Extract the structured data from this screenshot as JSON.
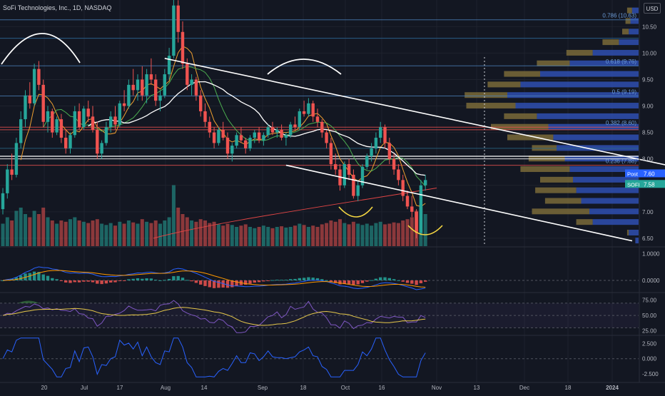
{
  "header": {
    "symbol_title": "SoFi Technologies, Inc., 1D, NASDAQ",
    "currency": "USD"
  },
  "colors": {
    "background": "#131722",
    "up": "#26a69a",
    "down": "#ef5350",
    "trendline": "#ffffff",
    "fib": "#6b9bd6",
    "ma_fast": "#f0a030",
    "ma_mid": "#4caf50",
    "ma_slow": "#ffffff",
    "ma_200": "#e04545",
    "vp_up": "#2f4fb0",
    "vp_down": "#7a6a38",
    "rsi": "#7e57c2",
    "rsi_ma": "#e6c84a",
    "macd": "#2962ff",
    "signal": "#ff9800",
    "osc": "#2962ff",
    "post_badge": "#2962ff",
    "price_badge": "#26a69a"
  },
  "chart_data": {
    "type": "candlestick",
    "x_axis": {
      "ticks": [
        "20",
        "Jul",
        "17",
        "Aug",
        "14",
        "Sep",
        "18",
        "Oct",
        "16",
        "Nov",
        "13",
        "Dec",
        "18",
        "2024"
      ]
    },
    "price_axis": {
      "range": [
        6.35,
        10.95
      ],
      "ticks": [
        "10.50",
        "10.00",
        "9.50",
        "9.00",
        "8.50",
        "8.00",
        "7.50",
        "7.00",
        "6.50"
      ]
    },
    "candles": [
      [
        7.05,
        7.45,
        6.95,
        7.35
      ],
      [
        7.35,
        7.9,
        7.25,
        7.8
      ],
      [
        7.8,
        8.1,
        7.6,
        7.7
      ],
      [
        7.7,
        8.4,
        7.65,
        8.3
      ],
      [
        8.3,
        8.9,
        8.2,
        8.75
      ],
      [
        8.75,
        9.3,
        8.6,
        9.2
      ],
      [
        9.2,
        9.45,
        8.95,
        9.05
      ],
      [
        9.05,
        9.8,
        9.0,
        9.7
      ],
      [
        9.7,
        9.85,
        9.3,
        9.4
      ],
      [
        9.4,
        9.5,
        8.6,
        8.7
      ],
      [
        8.7,
        9.0,
        8.5,
        8.9
      ],
      [
        8.9,
        8.95,
        8.4,
        8.5
      ],
      [
        8.5,
        8.8,
        8.45,
        8.75
      ],
      [
        8.75,
        8.85,
        8.3,
        8.4
      ],
      [
        8.4,
        8.55,
        8.1,
        8.2
      ],
      [
        8.2,
        8.5,
        8.1,
        8.45
      ],
      [
        8.45,
        9.0,
        8.4,
        8.9
      ],
      [
        8.9,
        9.05,
        8.55,
        8.6
      ],
      [
        8.6,
        9.0,
        8.55,
        8.95
      ],
      [
        8.95,
        9.1,
        8.7,
        8.8
      ],
      [
        8.8,
        9.0,
        8.5,
        8.55
      ],
      [
        8.55,
        8.7,
        8.0,
        8.1
      ],
      [
        8.1,
        8.35,
        8.0,
        8.3
      ],
      [
        8.3,
        8.7,
        8.25,
        8.6
      ],
      [
        8.6,
        8.9,
        8.5,
        8.8
      ],
      [
        8.8,
        9.0,
        8.55,
        8.65
      ],
      [
        8.65,
        9.1,
        8.6,
        9.05
      ],
      [
        9.05,
        9.3,
        8.9,
        9.0
      ],
      [
        9.0,
        9.5,
        8.95,
        9.4
      ],
      [
        9.4,
        9.7,
        9.2,
        9.3
      ],
      [
        9.3,
        9.6,
        9.1,
        9.5
      ],
      [
        9.5,
        9.75,
        9.1,
        9.2
      ],
      [
        9.2,
        9.7,
        9.05,
        9.6
      ],
      [
        9.6,
        9.9,
        9.4,
        9.5
      ],
      [
        9.5,
        9.6,
        9.0,
        9.1
      ],
      [
        9.1,
        9.3,
        8.9,
        9.2
      ],
      [
        9.2,
        9.7,
        9.15,
        9.6
      ],
      [
        9.6,
        10.1,
        9.5,
        9.95
      ],
      [
        9.95,
        11.1,
        9.9,
        10.9
      ],
      [
        10.9,
        11.0,
        10.2,
        10.4
      ],
      [
        10.4,
        10.6,
        9.7,
        9.8
      ],
      [
        9.8,
        9.9,
        9.3,
        9.4
      ],
      [
        9.4,
        9.6,
        9.2,
        9.5
      ],
      [
        9.5,
        9.55,
        9.1,
        9.2
      ],
      [
        9.2,
        9.3,
        8.8,
        8.9
      ],
      [
        8.9,
        9.05,
        8.6,
        8.7
      ],
      [
        8.7,
        8.8,
        8.4,
        8.5
      ],
      [
        8.5,
        8.6,
        8.2,
        8.3
      ],
      [
        8.3,
        8.6,
        8.25,
        8.55
      ],
      [
        8.55,
        8.7,
        8.35,
        8.4
      ],
      [
        8.4,
        8.5,
        8.0,
        8.1
      ],
      [
        8.1,
        8.3,
        7.95,
        8.25
      ],
      [
        8.25,
        8.5,
        8.2,
        8.45
      ],
      [
        8.45,
        8.6,
        8.3,
        8.35
      ],
      [
        8.35,
        8.4,
        8.1,
        8.2
      ],
      [
        8.2,
        8.45,
        8.15,
        8.4
      ],
      [
        8.4,
        8.55,
        8.3,
        8.5
      ],
      [
        8.5,
        8.6,
        8.3,
        8.35
      ],
      [
        8.35,
        8.5,
        8.25,
        8.45
      ],
      [
        8.45,
        8.65,
        8.4,
        8.6
      ],
      [
        8.6,
        8.7,
        8.45,
        8.5
      ],
      [
        8.5,
        8.6,
        8.4,
        8.55
      ],
      [
        8.55,
        8.65,
        8.35,
        8.4
      ],
      [
        8.4,
        8.5,
        8.25,
        8.45
      ],
      [
        8.45,
        8.7,
        8.4,
        8.65
      ],
      [
        8.65,
        8.8,
        8.55,
        8.6
      ],
      [
        8.6,
        8.95,
        8.55,
        8.9
      ],
      [
        8.9,
        9.1,
        8.8,
        8.85
      ],
      [
        8.85,
        9.15,
        8.8,
        9.05
      ],
      [
        9.05,
        9.1,
        8.7,
        8.8
      ],
      [
        8.8,
        8.95,
        8.6,
        8.7
      ],
      [
        8.7,
        8.75,
        8.4,
        8.5
      ],
      [
        8.5,
        8.55,
        8.2,
        8.3
      ],
      [
        8.3,
        8.4,
        7.8,
        7.9
      ],
      [
        7.9,
        8.1,
        7.7,
        7.8
      ],
      [
        7.8,
        7.9,
        7.4,
        7.5
      ],
      [
        7.5,
        7.95,
        7.45,
        7.9
      ],
      [
        7.9,
        8.0,
        7.6,
        7.7
      ],
      [
        7.7,
        7.8,
        7.25,
        7.3
      ],
      [
        7.3,
        7.6,
        7.2,
        7.5
      ],
      [
        7.5,
        7.9,
        7.45,
        7.85
      ],
      [
        7.85,
        8.1,
        7.8,
        8.05
      ],
      [
        8.05,
        8.3,
        7.95,
        8.2
      ],
      [
        8.2,
        8.5,
        8.1,
        8.4
      ],
      [
        8.4,
        8.7,
        8.3,
        8.6
      ],
      [
        8.6,
        8.65,
        8.2,
        8.3
      ],
      [
        8.3,
        8.4,
        7.9,
        8.0
      ],
      [
        8.0,
        8.1,
        7.7,
        7.8
      ],
      [
        7.8,
        7.9,
        7.5,
        7.6
      ],
      [
        7.6,
        7.7,
        7.2,
        7.3
      ],
      [
        7.3,
        7.4,
        7.05,
        7.1
      ],
      [
        7.1,
        7.3,
        6.9,
        7.0
      ],
      [
        7.0,
        7.05,
        6.5,
        6.6
      ],
      [
        6.6,
        7.6,
        6.55,
        7.5
      ],
      [
        7.5,
        7.7,
        7.4,
        7.6
      ]
    ],
    "volume": [
      0.35,
      0.45,
      0.4,
      0.55,
      0.6,
      0.5,
      0.45,
      0.55,
      0.5,
      0.6,
      0.45,
      0.4,
      0.35,
      0.4,
      0.38,
      0.42,
      0.45,
      0.4,
      0.38,
      0.36,
      0.4,
      0.42,
      0.35,
      0.33,
      0.36,
      0.32,
      0.38,
      0.35,
      0.4,
      0.37,
      0.35,
      0.42,
      0.38,
      0.36,
      0.4,
      0.35,
      0.4,
      0.45,
      0.95,
      0.6,
      0.5,
      0.45,
      0.4,
      0.38,
      0.42,
      0.4,
      0.36,
      0.38,
      0.34,
      0.32,
      0.35,
      0.33,
      0.3,
      0.32,
      0.34,
      0.3,
      0.28,
      0.3,
      0.32,
      0.3,
      0.28,
      0.3,
      0.31,
      0.29,
      0.3,
      0.32,
      0.35,
      0.33,
      0.3,
      0.32,
      0.3,
      0.34,
      0.36,
      0.4,
      0.38,
      0.42,
      0.36,
      0.34,
      0.38,
      0.35,
      0.33,
      0.35,
      0.32,
      0.36,
      0.38,
      0.34,
      0.35,
      0.37,
      0.36,
      0.4,
      0.42,
      0.45,
      0.55,
      0.65,
      0.5
    ],
    "fib_levels": [
      {
        "label": "0.786 (10.63)",
        "value": 10.63
      },
      {
        "label": "0.618 (9.76)",
        "value": 9.76
      },
      {
        "label": "0.5 (9.19)",
        "value": 9.19
      },
      {
        "label": "0.382 (8.60)",
        "value": 8.6
      },
      {
        "label": "0.236 (7.88)",
        "value": 7.88
      }
    ],
    "trendlines": [
      {
        "name": "channel-upper",
        "from": [
          36,
          9.9
        ],
        "to": [
          155,
          7.75
        ]
      },
      {
        "name": "channel-lower",
        "from": [
          63,
          7.88
        ],
        "to": [
          140,
          6.45
        ]
      }
    ],
    "volume_profile": [
      {
        "price": 10.8,
        "up": 0.04,
        "down": 0.03
      },
      {
        "price": 10.6,
        "up": 0.05,
        "down": 0.03
      },
      {
        "price": 10.4,
        "up": 0.06,
        "down": 0.04
      },
      {
        "price": 10.2,
        "up": 0.12,
        "down": 0.1
      },
      {
        "price": 10.0,
        "up": 0.28,
        "down": 0.16
      },
      {
        "price": 9.8,
        "up": 0.42,
        "down": 0.2
      },
      {
        "price": 9.6,
        "up": 0.6,
        "down": 0.22
      },
      {
        "price": 9.4,
        "up": 0.72,
        "down": 0.2
      },
      {
        "price": 9.2,
        "up": 0.8,
        "down": 0.26
      },
      {
        "price": 9.0,
        "up": 0.75,
        "down": 0.3
      },
      {
        "price": 8.8,
        "up": 0.62,
        "down": 0.2
      },
      {
        "price": 8.6,
        "up": 0.55,
        "down": 0.35
      },
      {
        "price": 8.4,
        "up": 0.52,
        "down": 0.28
      },
      {
        "price": 8.2,
        "up": 0.5,
        "down": 0.15
      },
      {
        "price": 8.0,
        "up": 0.45,
        "down": 0.22
      },
      {
        "price": 7.8,
        "up": 0.42,
        "down": 0.3
      },
      {
        "price": 7.6,
        "up": 0.4,
        "down": 0.2
      },
      {
        "price": 7.4,
        "up": 0.38,
        "down": 0.25
      },
      {
        "price": 7.2,
        "up": 0.35,
        "down": 0.22
      },
      {
        "price": 7.0,
        "up": 0.3,
        "down": 0.35
      },
      {
        "price": 6.8,
        "up": 0.28,
        "down": 0.1
      },
      {
        "price": 6.6,
        "up": 0.06,
        "down": 0.01
      },
      {
        "price": 6.45,
        "up": 0.02,
        "down": 0.0
      }
    ],
    "price_labels": {
      "post": {
        "label": "Post",
        "value": "7.60"
      },
      "last": {
        "label": "SOFI",
        "value": "7.58"
      }
    },
    "macd_axis": {
      "ticks": [
        "1.0000",
        "0.0000"
      ],
      "range": [
        -0.4,
        1.2
      ]
    },
    "rsi_axis": {
      "ticks": [
        "75.00",
        "50.00",
        "25.00"
      ],
      "range": [
        20,
        85
      ]
    },
    "osc_axis": {
      "ticks": [
        "2.500",
        "0.000",
        "-2.500"
      ],
      "range": [
        -3.2,
        3.6
      ]
    }
  }
}
